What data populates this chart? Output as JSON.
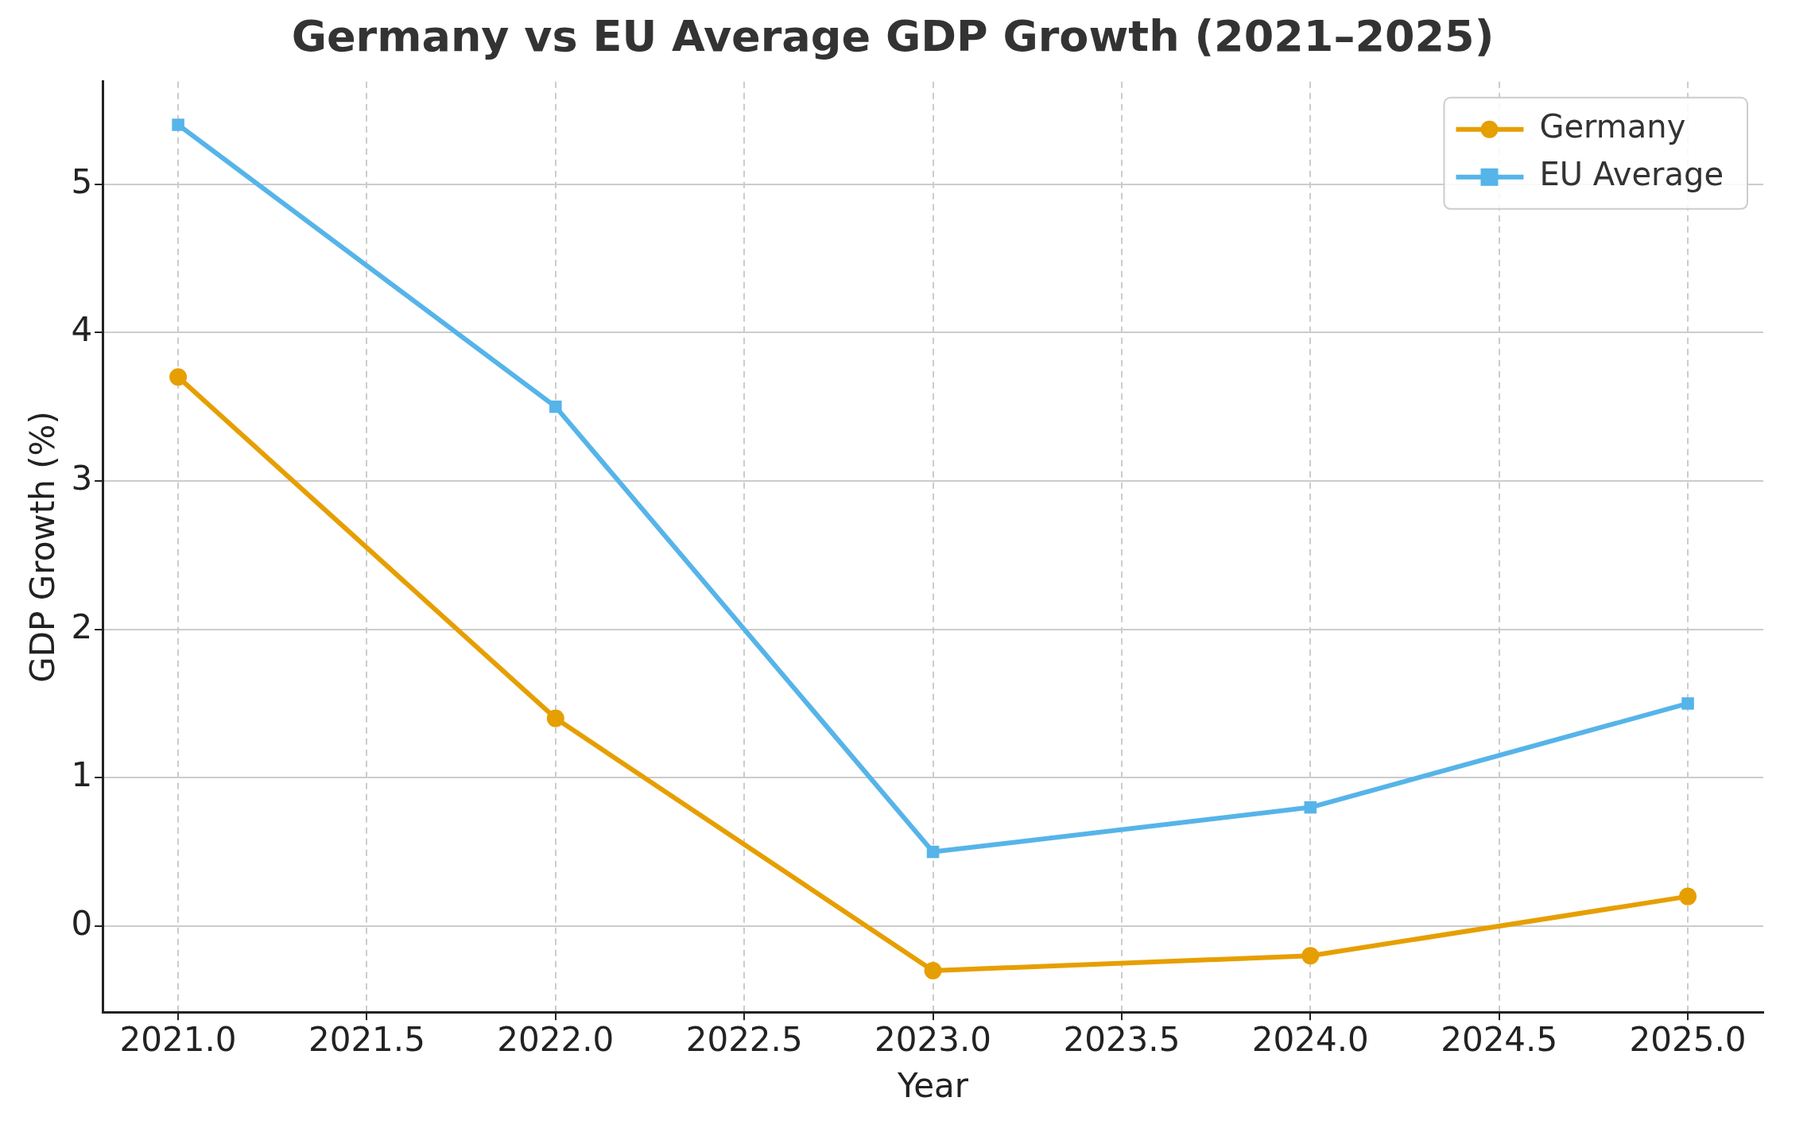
{
  "chart_data": {
    "type": "line",
    "title": "Germany vs EU Average GDP Growth (2021–2025)",
    "xlabel": "Year",
    "ylabel": "GDP Growth (%)",
    "x": [
      2021,
      2022,
      2023,
      2024,
      2025
    ],
    "series": [
      {
        "name": "Germany",
        "color": "#e69f00",
        "marker": "circle",
        "values": [
          3.7,
          1.4,
          -0.3,
          -0.2,
          0.2
        ]
      },
      {
        "name": "EU Average",
        "color": "#56b4e9",
        "marker": "square",
        "values": [
          5.4,
          3.5,
          0.5,
          0.8,
          1.5
        ]
      }
    ],
    "xlim": [
      2020.8,
      2025.2
    ],
    "ylim": [
      -0.58,
      5.69
    ],
    "xticks": [
      {
        "value": 2021,
        "label": "2021.0"
      },
      {
        "value": 2021.5,
        "label": "2021.5"
      },
      {
        "value": 2022,
        "label": "2022.0"
      },
      {
        "value": 2022.5,
        "label": "2022.5"
      },
      {
        "value": 2023,
        "label": "2023.0"
      },
      {
        "value": 2023.5,
        "label": "2023.5"
      },
      {
        "value": 2024,
        "label": "2024.0"
      },
      {
        "value": 2024.5,
        "label": "2024.5"
      },
      {
        "value": 2025,
        "label": "2025.0"
      }
    ],
    "yticks": [
      0,
      1,
      2,
      3,
      4,
      5
    ],
    "grid": true,
    "legend": "top right",
    "line_style": "solid"
  }
}
